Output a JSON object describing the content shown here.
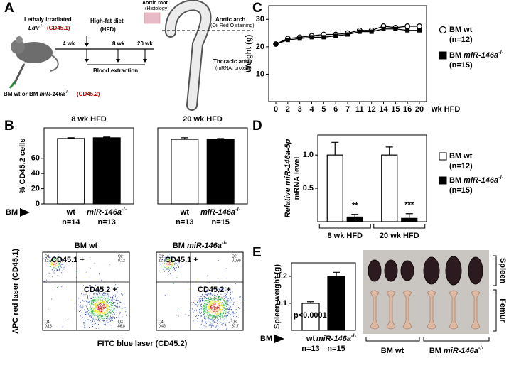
{
  "panel_labels": [
    "A",
    "B",
    "C",
    "D",
    "E"
  ],
  "schematic": {
    "recipient": "Lethaly irradiated",
    "recipient_strain": "Ldlr-/-",
    "recipient_marker": "(CD45.1)",
    "diet": "High-fat diet",
    "diet_abbr": "(HFD)",
    "timepoints": [
      "4 wk",
      "8 wk",
      "20 wk"
    ],
    "blood": "Blood extraction",
    "root": "Aortic root",
    "root_method": "(Histology)",
    "arch": "Aortic arch",
    "arch_method": "(Oil Red O staining)",
    "thoracic": "Thoracic aorta",
    "thoracic_method": "(mRNA, protein)",
    "donor": "BM wt or BM miR-146a-/-",
    "donor_marker": "(CD45.2)"
  },
  "chart_data": [
    {
      "type": "line",
      "ylabel": "Weight (g)",
      "xlabel": "wk HFD",
      "categories": [
        "0",
        "2",
        "3",
        "4",
        "5",
        "6",
        "7",
        "11",
        "12",
        "14",
        "15",
        "16",
        "20"
      ],
      "ylim": [
        0,
        35
      ],
      "yticks": [
        10,
        20,
        30
      ],
      "series": [
        {
          "name": "BM wt",
          "n_label": "(n=12)",
          "color": "#000000",
          "marker": "open-circle",
          "values": [
            21,
            23,
            23.5,
            24,
            24.5,
            24.5,
            25,
            26,
            26,
            27.5,
            27,
            27.5,
            27.5
          ]
        },
        {
          "name": "BM miR-146a-/-",
          "n_label": "(n=15)",
          "color": "#000000",
          "marker": "filled-square",
          "values": [
            21,
            22.5,
            23,
            23.5,
            23.5,
            24,
            24.5,
            25.5,
            25.5,
            26.5,
            26.5,
            26,
            26
          ]
        }
      ]
    },
    {
      "type": "bar",
      "title": "8 wk HFD",
      "ylabel": "% CD45.2 cells",
      "group_label": "BM",
      "categories": [
        "wt",
        "miR-146a-/-"
      ],
      "n_labels": [
        "n=14",
        "n=13"
      ],
      "values": [
        86,
        87
      ],
      "errors": [
        1,
        1
      ],
      "colors": [
        "#ffffff",
        "#000000"
      ],
      "ylim": [
        0,
        100
      ],
      "yticks": [
        0,
        20,
        40,
        60
      ]
    },
    {
      "type": "bar",
      "title": "20 wk HFD",
      "categories": [
        "wt",
        "miR-146a-/-"
      ],
      "n_labels": [
        "n=13",
        "n=15"
      ],
      "values": [
        85,
        85
      ],
      "errors": [
        2,
        1
      ],
      "colors": [
        "#ffffff",
        "#000000"
      ],
      "ylim": [
        0,
        100
      ]
    },
    {
      "type": "grouped_bar",
      "ylabel": [
        "Relative miR-146a-5p",
        "mRNA level"
      ],
      "categories": [
        "8 wk HFD",
        "20 wk HFD"
      ],
      "ylim": [
        0,
        1.3
      ],
      "yticks": [
        0.5,
        {
          "value": 1,
          "label": "1.0"
        }
      ],
      "series": [
        {
          "name": "BM wt",
          "n_label": "(n=12)",
          "color": "#ffffff",
          "values": [
            1.0,
            1.0
          ],
          "errors": [
            0.19,
            0.12
          ]
        },
        {
          "name": "BM miR-146a-/-",
          "n_label": "(n=15)",
          "color": "#000000",
          "values": [
            0.07,
            0.05
          ],
          "errors": [
            0.04,
            0.07
          ],
          "annotations": [
            "**",
            "***"
          ]
        }
      ]
    },
    {
      "type": "bar",
      "ylabel": "Spleen weight (g)",
      "group_label": "BM",
      "annotation": "p<0.0001",
      "categories": [
        "wt",
        "miR-146a-/-"
      ],
      "n_labels": [
        "n=13",
        "n=15"
      ],
      "values": [
        0.1,
        0.2
      ],
      "errors": [
        0.006,
        0.015
      ],
      "colors": [
        "#ffffff",
        "#000000"
      ],
      "ylim": [
        0,
        0.25
      ],
      "yticks": [
        0.1,
        0.2
      ]
    }
  ],
  "flow_cytometry": {
    "ylabel": "APC red laser (CD45.1)",
    "xlabel": "FITC blue laser (CD45.2)",
    "gates": [
      "CD45.1 +",
      "CD45.2 +"
    ],
    "plots": [
      {
        "title": "BM wt",
        "quadrants": [
          {
            "name": "Q1",
            "value": "12.9"
          },
          {
            "name": "Q2",
            "value": "0.12"
          },
          {
            "name": "Q4",
            "value": "0.18"
          },
          {
            "name": "Q3",
            "value": "86.8"
          }
        ]
      },
      {
        "title": "BM miR-146a-/-",
        "quadrants": [
          {
            "name": "Q1",
            "value": "11.6"
          },
          {
            "name": "Q2",
            "value": "0.090"
          },
          {
            "name": "Q4",
            "value": "0.46"
          },
          {
            "name": "Q3",
            "value": "87.7"
          }
        ]
      }
    ]
  },
  "photo": {
    "rows": [
      "Spleen",
      "Femur"
    ],
    "groups": [
      "BM wt",
      "BM miR-146a-/-"
    ]
  }
}
